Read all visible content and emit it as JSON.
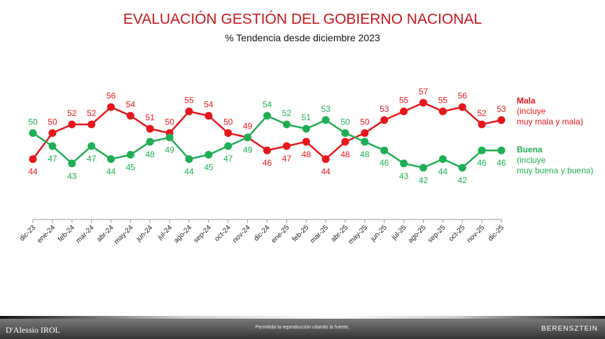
{
  "chart_data": {
    "type": "line",
    "title": "EVALUACIÓN GESTIÓN DEL GOBIERNO NACIONAL",
    "subtitle": "% Tendencia desde diciembre 2023",
    "categories": [
      "dic-23",
      "ene-24",
      "feb-24",
      "mar-24",
      "abr-24",
      "may-24",
      "jun-24",
      "jul-24",
      "ago-24",
      "sep-24",
      "oct-24",
      "nov-24",
      "dic-24",
      "ene-25",
      "feb-25",
      "mar-25",
      "abr-25",
      "may-25",
      "jun-25",
      "jul-25",
      "ago-25",
      "sep-25",
      "oct-25",
      "nov-25",
      "dic-25"
    ],
    "series": [
      {
        "name": "Mala",
        "note1": "(incluye",
        "note2": "muy mala y mala)",
        "color": "#e8161b",
        "values": [
          44,
          50,
          52,
          52,
          56,
          54,
          51,
          50,
          55,
          54,
          50,
          49,
          46,
          47,
          48,
          44,
          48,
          50,
          53,
          55,
          57,
          55,
          56,
          52,
          53
        ]
      },
      {
        "name": "Buena",
        "note1": "(incluye",
        "note2": "muy buena y buena)",
        "color": "#1fae55",
        "values": [
          50,
          47,
          43,
          47,
          44,
          45,
          48,
          49,
          44,
          45,
          47,
          49,
          54,
          52,
          51,
          53,
          50,
          48,
          46,
          43,
          42,
          44,
          42,
          46,
          46
        ]
      }
    ],
    "ylim": [
      42,
      57
    ],
    "grid": false,
    "legend": "right"
  },
  "footer": {
    "left": "D'Alessio IROL",
    "middle": "Permitida la reproducción citando la fuente.",
    "right": "BERENSZTEIN"
  }
}
